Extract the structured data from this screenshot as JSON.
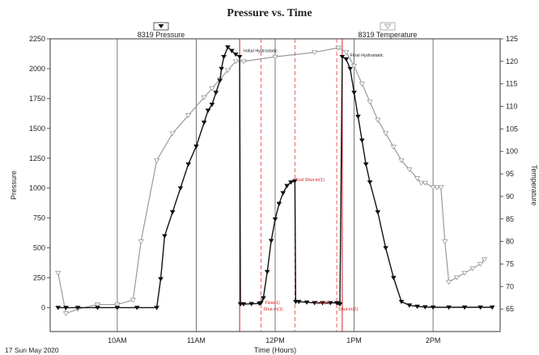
{
  "chart_data": {
    "type": "line",
    "title": "Pressure vs. Time",
    "xlabel": "Time (Hours)",
    "ylabel_left": "Pressure",
    "ylabel_right": "Temperature",
    "footer_date": "17 Sun May 2020",
    "x_ticks": [
      {
        "label": "10AM",
        "hour": 10.0
      },
      {
        "label": "11AM",
        "hour": 11.0
      },
      {
        "label": "12PM",
        "hour": 12.0
      },
      {
        "label": "1PM",
        "hour": 13.0
      },
      {
        "label": "2PM",
        "hour": 14.0
      }
    ],
    "xlim": [
      9.15,
      14.85
    ],
    "ylim_left": [
      -200,
      2250
    ],
    "yticks_left": [
      0,
      250,
      500,
      750,
      1000,
      1250,
      1500,
      1750,
      2000,
      2250
    ],
    "ylim_right": [
      60,
      125
    ],
    "yticks_right": [
      65,
      70,
      75,
      80,
      85,
      90,
      95,
      100,
      105,
      110,
      115,
      120,
      125
    ],
    "grid": true,
    "legend": [
      {
        "name": "8319 Pressure",
        "marker": "filled-down-triangle",
        "color": "#111111"
      },
      {
        "name": "8319 Temperature",
        "marker": "open-down-triangle",
        "color": "#9a9a9a"
      }
    ],
    "event_lines": [
      {
        "hour": 11.55,
        "color": "#d02020",
        "style": "solid"
      },
      {
        "hour": 11.82,
        "color": "#e86060",
        "style": "dashed"
      },
      {
        "hour": 12.25,
        "color": "#e86060",
        "style": "dashed"
      },
      {
        "hour": 12.78,
        "color": "#e86060",
        "style": "dashed"
      },
      {
        "hour": 12.85,
        "color": "#d02020",
        "style": "solid"
      }
    ],
    "annotations": [
      {
        "text": "Initial Hydrostatic",
        "hour": 11.6,
        "value": 2140,
        "color": "#222222"
      },
      {
        "text": "End Shut-in(1)",
        "hour": 12.26,
        "value": 1060,
        "color": "#d02020"
      },
      {
        "text": "Flow(1)",
        "hour": 11.87,
        "value": 30,
        "color": "#d02020"
      },
      {
        "text": "Shut-in(1)",
        "hour": 11.85,
        "value": -25,
        "color": "#d02020"
      },
      {
        "text": "Flow(2)",
        "hour": 12.5,
        "value": 30,
        "color": "#d02020"
      },
      {
        "text": "Shut-in(2)",
        "hour": 12.8,
        "value": -25,
        "color": "#d02020"
      },
      {
        "text": "Final Hydrostatic",
        "hour": 12.95,
        "value": 2100,
        "color": "#222222"
      }
    ],
    "series": [
      {
        "name": "8319 Pressure",
        "axis": "left",
        "color": "#111111",
        "x": [
          9.25,
          9.35,
          9.5,
          9.75,
          10.0,
          10.25,
          10.5,
          10.55,
          10.6,
          10.7,
          10.8,
          10.9,
          11.0,
          11.1,
          11.15,
          11.2,
          11.25,
          11.3,
          11.32,
          11.35,
          11.4,
          11.45,
          11.5,
          11.55,
          11.56,
          11.6,
          11.7,
          11.8,
          11.82,
          11.85,
          11.9,
          11.95,
          12.0,
          12.05,
          12.1,
          12.15,
          12.2,
          12.25,
          12.26,
          12.3,
          12.4,
          12.5,
          12.6,
          12.7,
          12.78,
          12.8,
          12.82,
          12.85,
          12.9,
          12.95,
          13.0,
          13.05,
          13.1,
          13.15,
          13.2,
          13.3,
          13.4,
          13.5,
          13.6,
          13.7,
          13.8,
          13.9,
          14.0,
          14.2,
          14.4,
          14.6,
          14.75
        ],
        "y": [
          0,
          0,
          0,
          0,
          0,
          0,
          0,
          240,
          600,
          800,
          1000,
          1200,
          1350,
          1550,
          1650,
          1700,
          1800,
          1900,
          2000,
          2100,
          2180,
          2150,
          2120,
          2100,
          30,
          30,
          32,
          35,
          40,
          80,
          300,
          560,
          740,
          870,
          960,
          1020,
          1050,
          1060,
          50,
          50,
          45,
          40,
          40,
          40,
          40,
          38,
          30,
          2100,
          2080,
          2000,
          1800,
          1600,
          1400,
          1200,
          1050,
          800,
          500,
          250,
          50,
          20,
          10,
          5,
          3,
          3,
          3,
          3,
          3
        ]
      },
      {
        "name": "8319 Temperature",
        "axis": "right",
        "color": "#9a9a9a",
        "x": [
          9.25,
          9.35,
          9.5,
          9.75,
          10.0,
          10.2,
          10.3,
          10.5,
          10.7,
          10.9,
          11.1,
          11.2,
          11.3,
          11.4,
          11.5,
          11.6,
          12.0,
          12.5,
          12.8,
          12.9,
          13.0,
          13.1,
          13.2,
          13.3,
          13.4,
          13.5,
          13.6,
          13.7,
          13.8,
          13.85,
          13.9,
          14.0,
          14.05,
          14.1,
          14.15,
          14.2,
          14.3,
          14.4,
          14.5,
          14.6,
          14.65
        ],
        "y": [
          73,
          64,
          65,
          66,
          66,
          67,
          80,
          98,
          104,
          108,
          112,
          114,
          116,
          118,
          120,
          120,
          121,
          122,
          123,
          122,
          119,
          115,
          111,
          107,
          104,
          101,
          98,
          96,
          94,
          93,
          93,
          92,
          92,
          92,
          80,
          71,
          72,
          73,
          74,
          75,
          76
        ]
      }
    ]
  }
}
